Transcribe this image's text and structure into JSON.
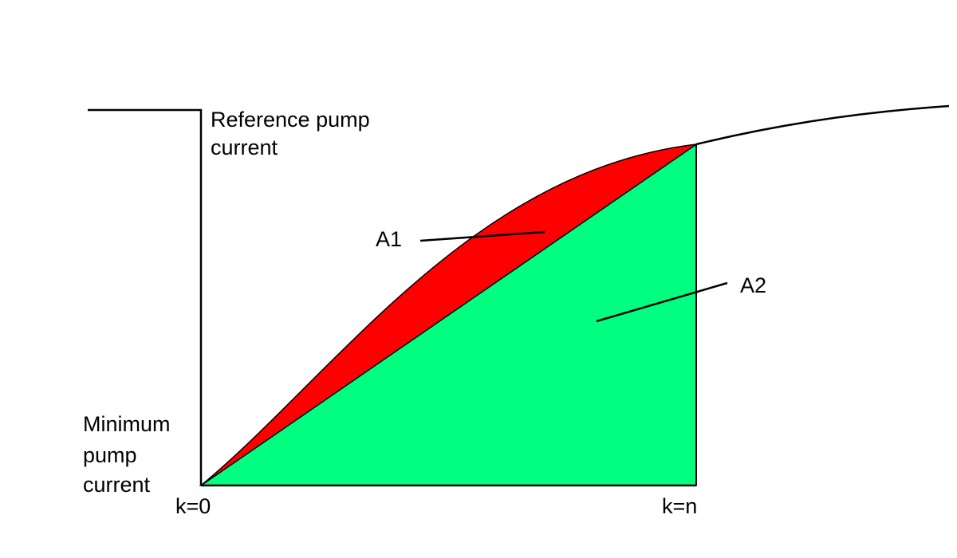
{
  "labels": {
    "reference_line1": "Reference pump",
    "reference_line2": "current",
    "minimum_line1": "Minimum",
    "minimum_line2": "pump",
    "minimum_line3": "current",
    "k_start": "k=0",
    "k_end": "k=n",
    "area1": "A1",
    "area2": "A2"
  },
  "colors": {
    "area1_fill": "#ff0000",
    "area2_fill": "#00ff80",
    "line": "#000000",
    "background": "#ffffff"
  }
}
